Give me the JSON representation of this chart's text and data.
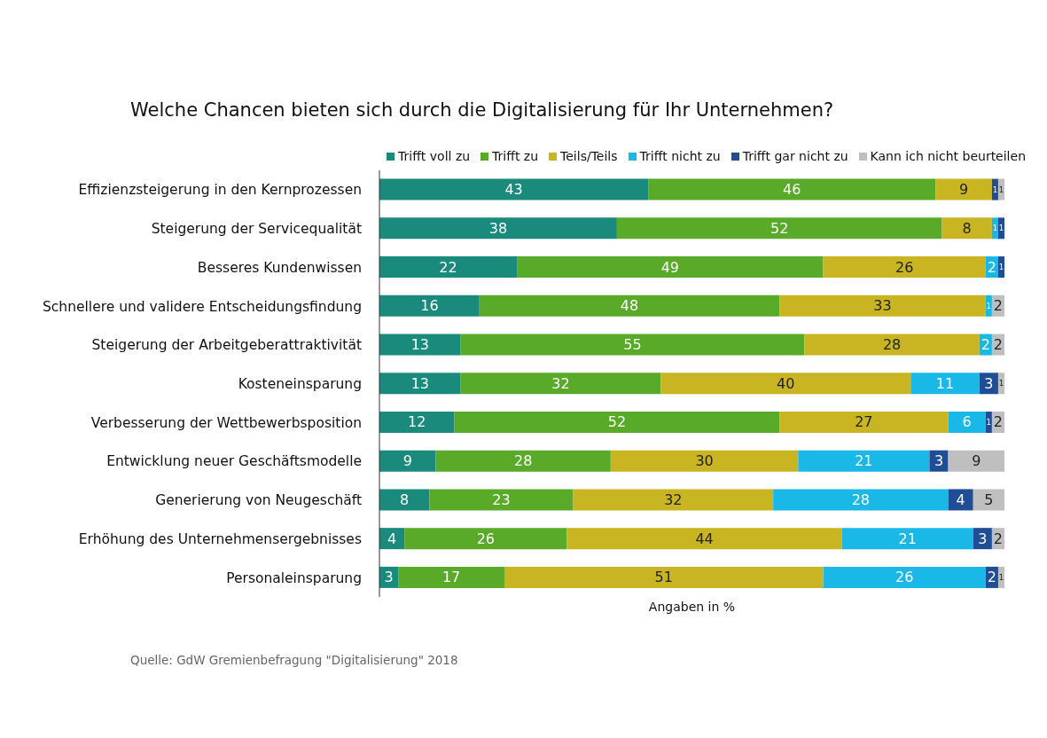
{
  "chart_data": {
    "type": "bar",
    "orientation": "horizontal",
    "stacked": true,
    "title": "Welche Chancen bieten sich durch die Digitalisierung für Ihr Unternehmen?",
    "xlabel": "Angaben in %",
    "annotations": [
      "Quelle: GdW Gremienbefragung \"Digitalisierung\" 2018"
    ],
    "categories": [
      "Effizienzsteigerung in den Kernprozessen",
      "Steigerung der Servicequalität",
      "Besseres Kundenwissen",
      "Schnellere und validere Entscheidungsfindung",
      "Steigerung der Arbeitgeberattraktivität",
      "Kosteneinsparung",
      "Verbesserung der Wettbewerbsposition",
      "Entwicklung neuer Geschäftsmodelle",
      "Generierung von Neugeschäft",
      "Erhöhung des Unternehmensergebnisses",
      "Personaleinsparung"
    ],
    "series": [
      {
        "name": "Trifft voll zu",
        "color": "#1a8a7d",
        "values": [
          43,
          38,
          22,
          16,
          13,
          13,
          12,
          9,
          8,
          4,
          3
        ]
      },
      {
        "name": "Trifft zu",
        "color": "#5aaa2a",
        "values": [
          46,
          52,
          49,
          48,
          55,
          32,
          52,
          28,
          23,
          26,
          17
        ]
      },
      {
        "name": "Teils/Teils",
        "color": "#c8b521",
        "values": [
          9,
          8,
          26,
          33,
          28,
          40,
          27,
          30,
          32,
          44,
          51
        ]
      },
      {
        "name": "Trifft nicht zu",
        "color": "#1ab8e6",
        "values": [
          null,
          1,
          2,
          1,
          2,
          11,
          6,
          21,
          28,
          21,
          26
        ]
      },
      {
        "name": "Trifft gar nicht zu",
        "color": "#1f4e96",
        "values": [
          1,
          1,
          1,
          null,
          null,
          3,
          1,
          3,
          4,
          3,
          2
        ]
      },
      {
        "name": "Kann ich nicht beurteilen",
        "color": "#bfbfbf",
        "values": [
          1,
          null,
          null,
          2,
          2,
          1,
          2,
          9,
          5,
          2,
          1
        ]
      }
    ],
    "xlim": [
      0,
      100
    ],
    "tick_labels": "y",
    "data_labels": true,
    "legend": "top",
    "grid": false
  }
}
